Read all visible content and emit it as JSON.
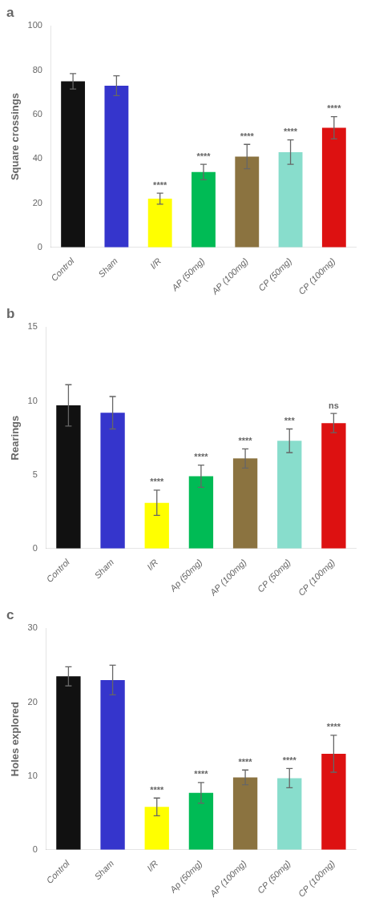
{
  "chart_data": [
    {
      "type": "bar",
      "title": "a",
      "ylabel": "Square crossings",
      "categories": [
        "Control",
        "Sham",
        "I/R",
        "AP (50mg)",
        "AP (100mg)",
        "CP (50mg)",
        "CP (100mg)"
      ],
      "values": [
        75,
        73,
        22,
        34,
        41,
        43,
        54
      ],
      "errors": [
        3.5,
        4.5,
        2.5,
        3.5,
        5.5,
        5.5,
        5.0
      ],
      "colors": [
        "#111111",
        "#3535cc",
        "#ffff00",
        "#00bb55",
        "#8b7340",
        "#88ddcc",
        "#dd1111"
      ],
      "significance": [
        null,
        null,
        "****",
        "****",
        "****",
        "****",
        "****"
      ],
      "ylim": [
        0,
        100
      ],
      "yticks": [
        0,
        20,
        40,
        60,
        80,
        100
      ],
      "grid": false
    },
    {
      "type": "bar",
      "title": "b",
      "ylabel": "Rearings",
      "categories": [
        "Control",
        "Sham",
        "I/R",
        "Ap (50mg)",
        "AP (100mg)",
        "CP (50mg)",
        "CP (100mg)"
      ],
      "values": [
        9.7,
        9.2,
        3.1,
        4.9,
        6.1,
        7.3,
        8.5
      ],
      "errors": [
        1.4,
        1.1,
        0.85,
        0.75,
        0.65,
        0.8,
        0.65
      ],
      "colors": [
        "#111111",
        "#3535cc",
        "#ffff00",
        "#00bb55",
        "#8b7340",
        "#88ddcc",
        "#dd1111"
      ],
      "significance": [
        null,
        null,
        "****",
        "****",
        "****",
        "***",
        "ns"
      ],
      "ylim": [
        0,
        15
      ],
      "yticks": [
        0,
        5,
        10,
        15
      ],
      "grid": false
    },
    {
      "type": "bar",
      "title": "c",
      "ylabel": "Holes explored",
      "categories": [
        "Control",
        "Sham",
        "I/R",
        "Ap (50mg)",
        "AP (100mg)",
        "CP (50mg)",
        "CP (100mg)"
      ],
      "values": [
        23.5,
        23.0,
        5.8,
        7.7,
        9.8,
        9.7,
        13.0
      ],
      "errors": [
        1.3,
        2.0,
        1.2,
        1.4,
        1.0,
        1.3,
        2.5
      ],
      "colors": [
        "#111111",
        "#3535cc",
        "#ffff00",
        "#00bb55",
        "#8b7340",
        "#88ddcc",
        "#dd1111"
      ],
      "significance": [
        null,
        null,
        "****",
        "****",
        "****",
        "****",
        "****"
      ],
      "ylim": [
        0,
        30
      ],
      "yticks": [
        0,
        10,
        20,
        30
      ],
      "grid": false
    }
  ]
}
